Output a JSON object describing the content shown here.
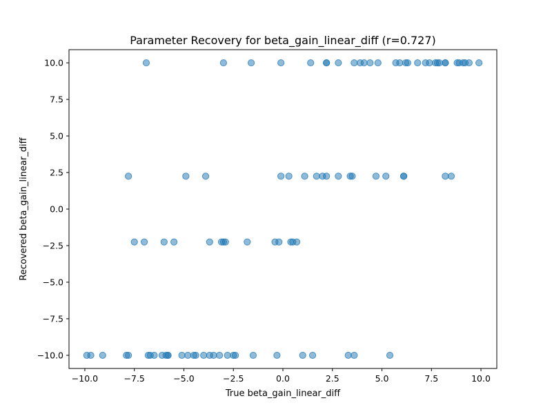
{
  "chart_data": {
    "type": "scatter",
    "title": "Parameter Recovery for beta_gain_linear_diff (r=0.727)",
    "xlabel": "True beta_gain_linear_diff",
    "ylabel": "Recovered beta_gain_linear_diff",
    "xlim": [
      -10.8,
      10.8
    ],
    "ylim": [
      -10.9,
      10.9
    ],
    "grid": false,
    "point_color": "#1f77b4",
    "point_opacity": 0.5,
    "xticks": [
      {
        "value": -10.0,
        "label": "−10.0"
      },
      {
        "value": -7.5,
        "label": "−7.5"
      },
      {
        "value": -5.0,
        "label": "−5.0"
      },
      {
        "value": -2.5,
        "label": "−2.5"
      },
      {
        "value": 0.0,
        "label": "0.0"
      },
      {
        "value": 2.5,
        "label": "2.5"
      },
      {
        "value": 5.0,
        "label": "5.0"
      },
      {
        "value": 7.5,
        "label": "7.5"
      },
      {
        "value": 10.0,
        "label": "10.0"
      }
    ],
    "yticks": [
      {
        "value": -10.0,
        "label": "−10.0"
      },
      {
        "value": -7.5,
        "label": "−7.5"
      },
      {
        "value": -5.0,
        "label": "−5.0"
      },
      {
        "value": -2.5,
        "label": "−2.5"
      },
      {
        "value": 0.0,
        "label": "0.0"
      },
      {
        "value": 2.5,
        "label": "2.5"
      },
      {
        "value": 5.0,
        "label": "5.0"
      },
      {
        "value": 7.5,
        "label": "7.5"
      },
      {
        "value": 10.0,
        "label": "10.0"
      }
    ],
    "points": [
      {
        "x": -6.9,
        "y": 10
      },
      {
        "x": -3.0,
        "y": 10
      },
      {
        "x": -1.6,
        "y": 10
      },
      {
        "x": -0.1,
        "y": 10
      },
      {
        "x": 1.4,
        "y": 10
      },
      {
        "x": 2.2,
        "y": 10
      },
      {
        "x": 2.2,
        "y": 10
      },
      {
        "x": 2.8,
        "y": 10
      },
      {
        "x": 3.6,
        "y": 10
      },
      {
        "x": 3.9,
        "y": 10
      },
      {
        "x": 4.1,
        "y": 10
      },
      {
        "x": 4.4,
        "y": 10
      },
      {
        "x": 4.8,
        "y": 10
      },
      {
        "x": 5.7,
        "y": 10
      },
      {
        "x": 5.9,
        "y": 10
      },
      {
        "x": 6.2,
        "y": 10
      },
      {
        "x": 6.3,
        "y": 10
      },
      {
        "x": 6.8,
        "y": 10
      },
      {
        "x": 7.2,
        "y": 10
      },
      {
        "x": 7.4,
        "y": 10
      },
      {
        "x": 7.7,
        "y": 10
      },
      {
        "x": 7.8,
        "y": 10
      },
      {
        "x": 7.9,
        "y": 10
      },
      {
        "x": 8.2,
        "y": 10
      },
      {
        "x": 8.2,
        "y": 10
      },
      {
        "x": 8.8,
        "y": 10
      },
      {
        "x": 8.9,
        "y": 10
      },
      {
        "x": 9.1,
        "y": 10
      },
      {
        "x": 9.2,
        "y": 10
      },
      {
        "x": 9.4,
        "y": 10
      },
      {
        "x": 9.9,
        "y": 10
      },
      {
        "x": -7.8,
        "y": 2.25
      },
      {
        "x": -4.9,
        "y": 2.25
      },
      {
        "x": -3.9,
        "y": 2.25
      },
      {
        "x": -0.1,
        "y": 2.25
      },
      {
        "x": 0.3,
        "y": 2.25
      },
      {
        "x": 1.1,
        "y": 2.25
      },
      {
        "x": 1.7,
        "y": 2.25
      },
      {
        "x": 2.0,
        "y": 2.25
      },
      {
        "x": 2.2,
        "y": 2.25
      },
      {
        "x": 2.8,
        "y": 2.25
      },
      {
        "x": 3.4,
        "y": 2.25
      },
      {
        "x": 3.5,
        "y": 2.25
      },
      {
        "x": 4.7,
        "y": 2.25
      },
      {
        "x": 5.2,
        "y": 2.25
      },
      {
        "x": 6.1,
        "y": 2.25
      },
      {
        "x": 6.1,
        "y": 2.25
      },
      {
        "x": 8.2,
        "y": 2.25
      },
      {
        "x": 8.5,
        "y": 2.25
      },
      {
        "x": -7.5,
        "y": -2.25
      },
      {
        "x": -7.0,
        "y": -2.25
      },
      {
        "x": -6.0,
        "y": -2.25
      },
      {
        "x": -5.5,
        "y": -2.25
      },
      {
        "x": -3.7,
        "y": -2.25
      },
      {
        "x": -3.1,
        "y": -2.25
      },
      {
        "x": -3.0,
        "y": -2.25
      },
      {
        "x": -2.9,
        "y": -2.25
      },
      {
        "x": -1.8,
        "y": -2.25
      },
      {
        "x": -0.4,
        "y": -2.25
      },
      {
        "x": -0.2,
        "y": -2.25
      },
      {
        "x": 0.4,
        "y": -2.25
      },
      {
        "x": 0.5,
        "y": -2.25
      },
      {
        "x": 0.7,
        "y": -2.25
      },
      {
        "x": -9.9,
        "y": -10
      },
      {
        "x": -9.7,
        "y": -10
      },
      {
        "x": -9.1,
        "y": -10
      },
      {
        "x": -7.9,
        "y": -10
      },
      {
        "x": -7.8,
        "y": -10
      },
      {
        "x": -6.8,
        "y": -10
      },
      {
        "x": -6.7,
        "y": -10
      },
      {
        "x": -6.5,
        "y": -10
      },
      {
        "x": -6.1,
        "y": -10
      },
      {
        "x": -5.9,
        "y": -10
      },
      {
        "x": -5.8,
        "y": -10
      },
      {
        "x": -5.8,
        "y": -10
      },
      {
        "x": -5.1,
        "y": -10
      },
      {
        "x": -4.8,
        "y": -10
      },
      {
        "x": -4.5,
        "y": -10
      },
      {
        "x": -4.4,
        "y": -10
      },
      {
        "x": -4.0,
        "y": -10
      },
      {
        "x": -3.7,
        "y": -10
      },
      {
        "x": -3.5,
        "y": -10
      },
      {
        "x": -3.2,
        "y": -10
      },
      {
        "x": -2.8,
        "y": -10
      },
      {
        "x": -2.5,
        "y": -10
      },
      {
        "x": -2.4,
        "y": -10
      },
      {
        "x": -1.5,
        "y": -10
      },
      {
        "x": -0.3,
        "y": -10
      },
      {
        "x": 1.0,
        "y": -10
      },
      {
        "x": 1.5,
        "y": -10
      },
      {
        "x": 3.3,
        "y": -10
      },
      {
        "x": 3.6,
        "y": -10
      },
      {
        "x": 5.4,
        "y": -10
      }
    ]
  }
}
